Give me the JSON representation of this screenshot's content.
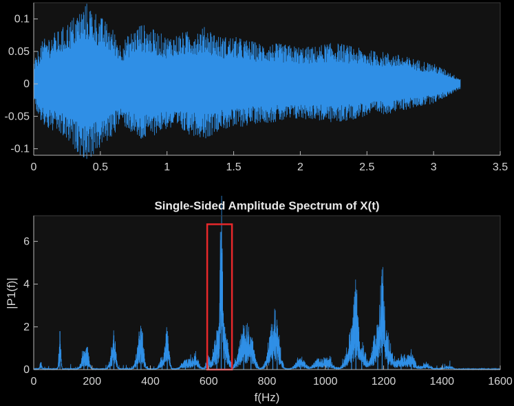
{
  "colors": {
    "figure_bg": "#000000",
    "axes_bg": "#121212",
    "axis_line": "#b8b8b8",
    "text": "#d6d6d6",
    "series": "#2f8fe6",
    "highlight": "#e8282b"
  },
  "chart_data": [
    {
      "type": "line",
      "title": "",
      "xlabel": "",
      "ylabel": "",
      "xlim": [
        0,
        3.5
      ],
      "ylim": [
        -0.11,
        0.125
      ],
      "xticks": [
        0,
        0.5,
        1,
        1.5,
        2,
        2.5,
        3,
        3.5
      ],
      "xtick_labels": [
        "0",
        "0.5",
        "1",
        "1.5",
        "2",
        "2.5",
        "3",
        "3.5"
      ],
      "yticks": [
        -0.1,
        -0.05,
        0,
        0.05,
        0.1
      ],
      "ytick_labels": [
        "-0.1",
        "-0.05",
        "0",
        "0.05",
        "0.1"
      ],
      "grid": false,
      "series": [
        {
          "description_of_shape": "dense audio waveform, symmetric around 0",
          "x": [
            0,
            0.05,
            0.1,
            0.2,
            0.3,
            0.4,
            0.5,
            0.6,
            0.65,
            0.7,
            0.8,
            0.9,
            1.0,
            1.1,
            1.2,
            1.3,
            1.4,
            1.5,
            1.6,
            1.7,
            1.8,
            1.9,
            2.0,
            2.1,
            2.2,
            2.3,
            2.4,
            2.5,
            2.6,
            2.7,
            2.8,
            2.9,
            3.0,
            3.1,
            3.2
          ],
          "envelope": [
            0.03,
            0.06,
            0.07,
            0.08,
            0.1,
            0.12,
            0.1,
            0.08,
            0.06,
            0.07,
            0.09,
            0.08,
            0.07,
            0.075,
            0.08,
            0.085,
            0.07,
            0.07,
            0.065,
            0.06,
            0.06,
            0.058,
            0.055,
            0.055,
            0.06,
            0.06,
            0.055,
            0.05,
            0.048,
            0.045,
            0.04,
            0.035,
            0.03,
            0.02,
            0.008
          ]
        }
      ]
    },
    {
      "type": "line",
      "title": "Single-Sided Amplitude Spectrum of X(t)",
      "xlabel": "f(Hz)",
      "ylabel": "|P1(f)|",
      "xlim": [
        0,
        1600
      ],
      "ylim": [
        0,
        7.2
      ],
      "xticks": [
        0,
        200,
        400,
        600,
        800,
        1000,
        1200,
        1400,
        1600
      ],
      "xtick_labels": [
        "0",
        "200",
        "400",
        "600",
        "800",
        "1000",
        "1200",
        "1400",
        "1600"
      ],
      "yticks": [
        0,
        2,
        4,
        6
      ],
      "ytick_labels": [
        "0",
        "2",
        "4",
        "6"
      ],
      "grid": false,
      "peaks": [
        {
          "f": 25,
          "a": 0.35,
          "w": 3
        },
        {
          "f": 90,
          "a": 1.8,
          "w": 3
        },
        {
          "f": 172,
          "a": 0.7,
          "w": 8
        },
        {
          "f": 185,
          "a": 0.6,
          "w": 6
        },
        {
          "f": 262,
          "a": 0.3,
          "w": 6
        },
        {
          "f": 275,
          "a": 1.6,
          "w": 6
        },
        {
          "f": 355,
          "a": 0.5,
          "w": 8
        },
        {
          "f": 368,
          "a": 1.7,
          "w": 8
        },
        {
          "f": 440,
          "a": 0.5,
          "w": 8
        },
        {
          "f": 458,
          "a": 1.8,
          "w": 6
        },
        {
          "f": 520,
          "a": 0.4,
          "w": 12
        },
        {
          "f": 552,
          "a": 0.6,
          "w": 12
        },
        {
          "f": 598,
          "a": 0.6,
          "w": 6
        },
        {
          "f": 628,
          "a": 1.5,
          "w": 10
        },
        {
          "f": 643,
          "a": 6.45,
          "w": 4
        },
        {
          "f": 655,
          "a": 2.0,
          "w": 10
        },
        {
          "f": 720,
          "a": 1.6,
          "w": 16
        },
        {
          "f": 745,
          "a": 1.1,
          "w": 12
        },
        {
          "f": 820,
          "a": 1.8,
          "w": 14
        },
        {
          "f": 835,
          "a": 1.2,
          "w": 10
        },
        {
          "f": 915,
          "a": 0.5,
          "w": 14
        },
        {
          "f": 975,
          "a": 0.4,
          "w": 14
        },
        {
          "f": 1010,
          "a": 0.45,
          "w": 14
        },
        {
          "f": 1090,
          "a": 1.6,
          "w": 16
        },
        {
          "f": 1105,
          "a": 2.4,
          "w": 6
        },
        {
          "f": 1125,
          "a": 1.0,
          "w": 12
        },
        {
          "f": 1180,
          "a": 1.8,
          "w": 16
        },
        {
          "f": 1195,
          "a": 3.0,
          "w": 6
        },
        {
          "f": 1215,
          "a": 1.3,
          "w": 12
        },
        {
          "f": 1260,
          "a": 0.6,
          "w": 16
        },
        {
          "f": 1295,
          "a": 0.6,
          "w": 12
        },
        {
          "f": 1345,
          "a": 0.25,
          "w": 14
        },
        {
          "f": 1420,
          "a": 0.12,
          "w": 16
        }
      ],
      "annotation": {
        "type": "rectangle",
        "x_range": [
          595,
          680
        ],
        "y_range": [
          0,
          6.8
        ],
        "color": "#e8282b"
      }
    }
  ]
}
